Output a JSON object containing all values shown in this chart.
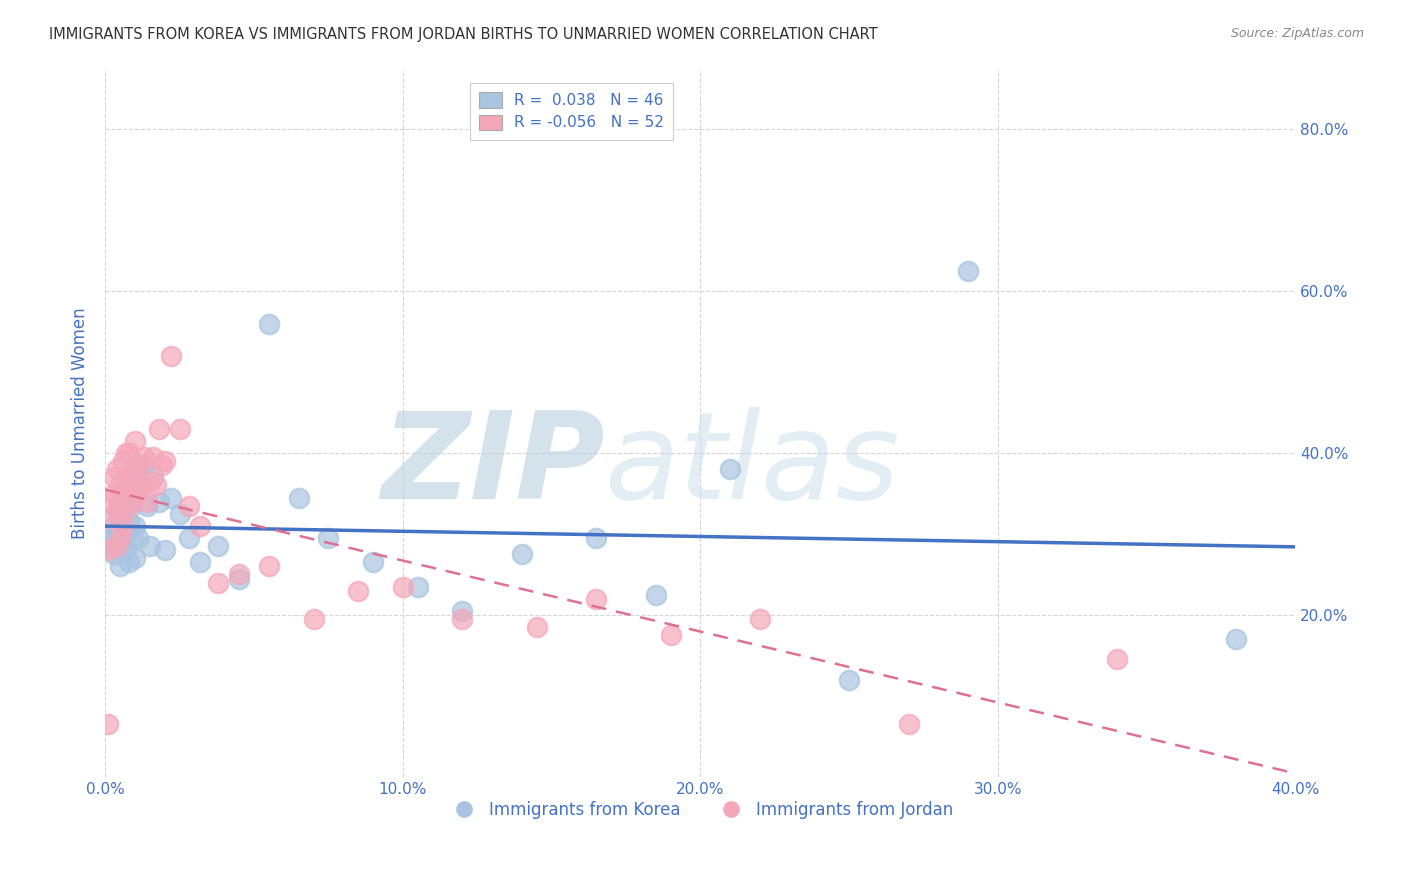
{
  "title": "IMMIGRANTS FROM KOREA VS IMMIGRANTS FROM JORDAN BIRTHS TO UNMARRIED WOMEN CORRELATION CHART",
  "source": "Source: ZipAtlas.com",
  "ylabel": "Births to Unmarried Women",
  "xlim": [
    0.0,
    0.4
  ],
  "ylim": [
    0.0,
    0.875
  ],
  "xtick_labels": [
    "0.0%",
    "",
    "10.0%",
    "",
    "20.0%",
    "",
    "30.0%",
    "",
    "40.0%"
  ],
  "xtick_vals": [
    0.0,
    0.05,
    0.1,
    0.15,
    0.2,
    0.25,
    0.3,
    0.35,
    0.4
  ],
  "ytick_labels": [
    "20.0%",
    "40.0%",
    "60.0%",
    "80.0%"
  ],
  "ytick_vals": [
    0.2,
    0.4,
    0.6,
    0.8
  ],
  "korea_R": 0.038,
  "korea_N": 46,
  "jordan_R": -0.056,
  "jordan_N": 52,
  "korea_color": "#a8c4e0",
  "jordan_color": "#f4a7b9",
  "korea_line_color": "#4472c4",
  "jordan_line_color": "#e07090",
  "watermark_zip": "ZIP",
  "watermark_atlas": "atlas",
  "watermark_color": "#c8d8ea",
  "background_color": "#ffffff",
  "grid_color": "#cccccc",
  "title_color": "#333333",
  "axis_label_color": "#4472c4",
  "korea_x": [
    0.001,
    0.002,
    0.003,
    0.003,
    0.004,
    0.004,
    0.005,
    0.005,
    0.005,
    0.006,
    0.006,
    0.007,
    0.007,
    0.008,
    0.008,
    0.009,
    0.009,
    0.01,
    0.01,
    0.011,
    0.012,
    0.013,
    0.014,
    0.015,
    0.016,
    0.018,
    0.02,
    0.022,
    0.025,
    0.028,
    0.032,
    0.038,
    0.045,
    0.055,
    0.065,
    0.075,
    0.09,
    0.105,
    0.12,
    0.14,
    0.165,
    0.185,
    0.21,
    0.25,
    0.29,
    0.38
  ],
  "korea_y": [
    0.285,
    0.295,
    0.275,
    0.31,
    0.3,
    0.33,
    0.26,
    0.285,
    0.32,
    0.295,
    0.35,
    0.28,
    0.305,
    0.315,
    0.265,
    0.295,
    0.335,
    0.27,
    0.31,
    0.295,
    0.36,
    0.385,
    0.335,
    0.285,
    0.37,
    0.34,
    0.28,
    0.345,
    0.325,
    0.295,
    0.265,
    0.285,
    0.245,
    0.56,
    0.345,
    0.295,
    0.265,
    0.235,
    0.205,
    0.275,
    0.295,
    0.225,
    0.38,
    0.12,
    0.625,
    0.17
  ],
  "jordan_x": [
    0.001,
    0.001,
    0.002,
    0.002,
    0.003,
    0.003,
    0.004,
    0.004,
    0.004,
    0.005,
    0.005,
    0.005,
    0.006,
    0.006,
    0.006,
    0.007,
    0.007,
    0.007,
    0.008,
    0.008,
    0.009,
    0.009,
    0.01,
    0.01,
    0.011,
    0.011,
    0.012,
    0.013,
    0.014,
    0.015,
    0.016,
    0.017,
    0.018,
    0.019,
    0.02,
    0.022,
    0.025,
    0.028,
    0.032,
    0.038,
    0.045,
    0.055,
    0.07,
    0.085,
    0.1,
    0.12,
    0.145,
    0.165,
    0.19,
    0.22,
    0.27,
    0.34
  ],
  "jordan_y": [
    0.065,
    0.28,
    0.32,
    0.34,
    0.35,
    0.37,
    0.285,
    0.33,
    0.38,
    0.295,
    0.34,
    0.36,
    0.31,
    0.355,
    0.39,
    0.33,
    0.37,
    0.4,
    0.36,
    0.4,
    0.34,
    0.375,
    0.38,
    0.415,
    0.35,
    0.385,
    0.36,
    0.395,
    0.34,
    0.365,
    0.395,
    0.36,
    0.43,
    0.385,
    0.39,
    0.52,
    0.43,
    0.335,
    0.31,
    0.24,
    0.25,
    0.26,
    0.195,
    0.23,
    0.235,
    0.195,
    0.185,
    0.22,
    0.175,
    0.195,
    0.065,
    0.145
  ]
}
